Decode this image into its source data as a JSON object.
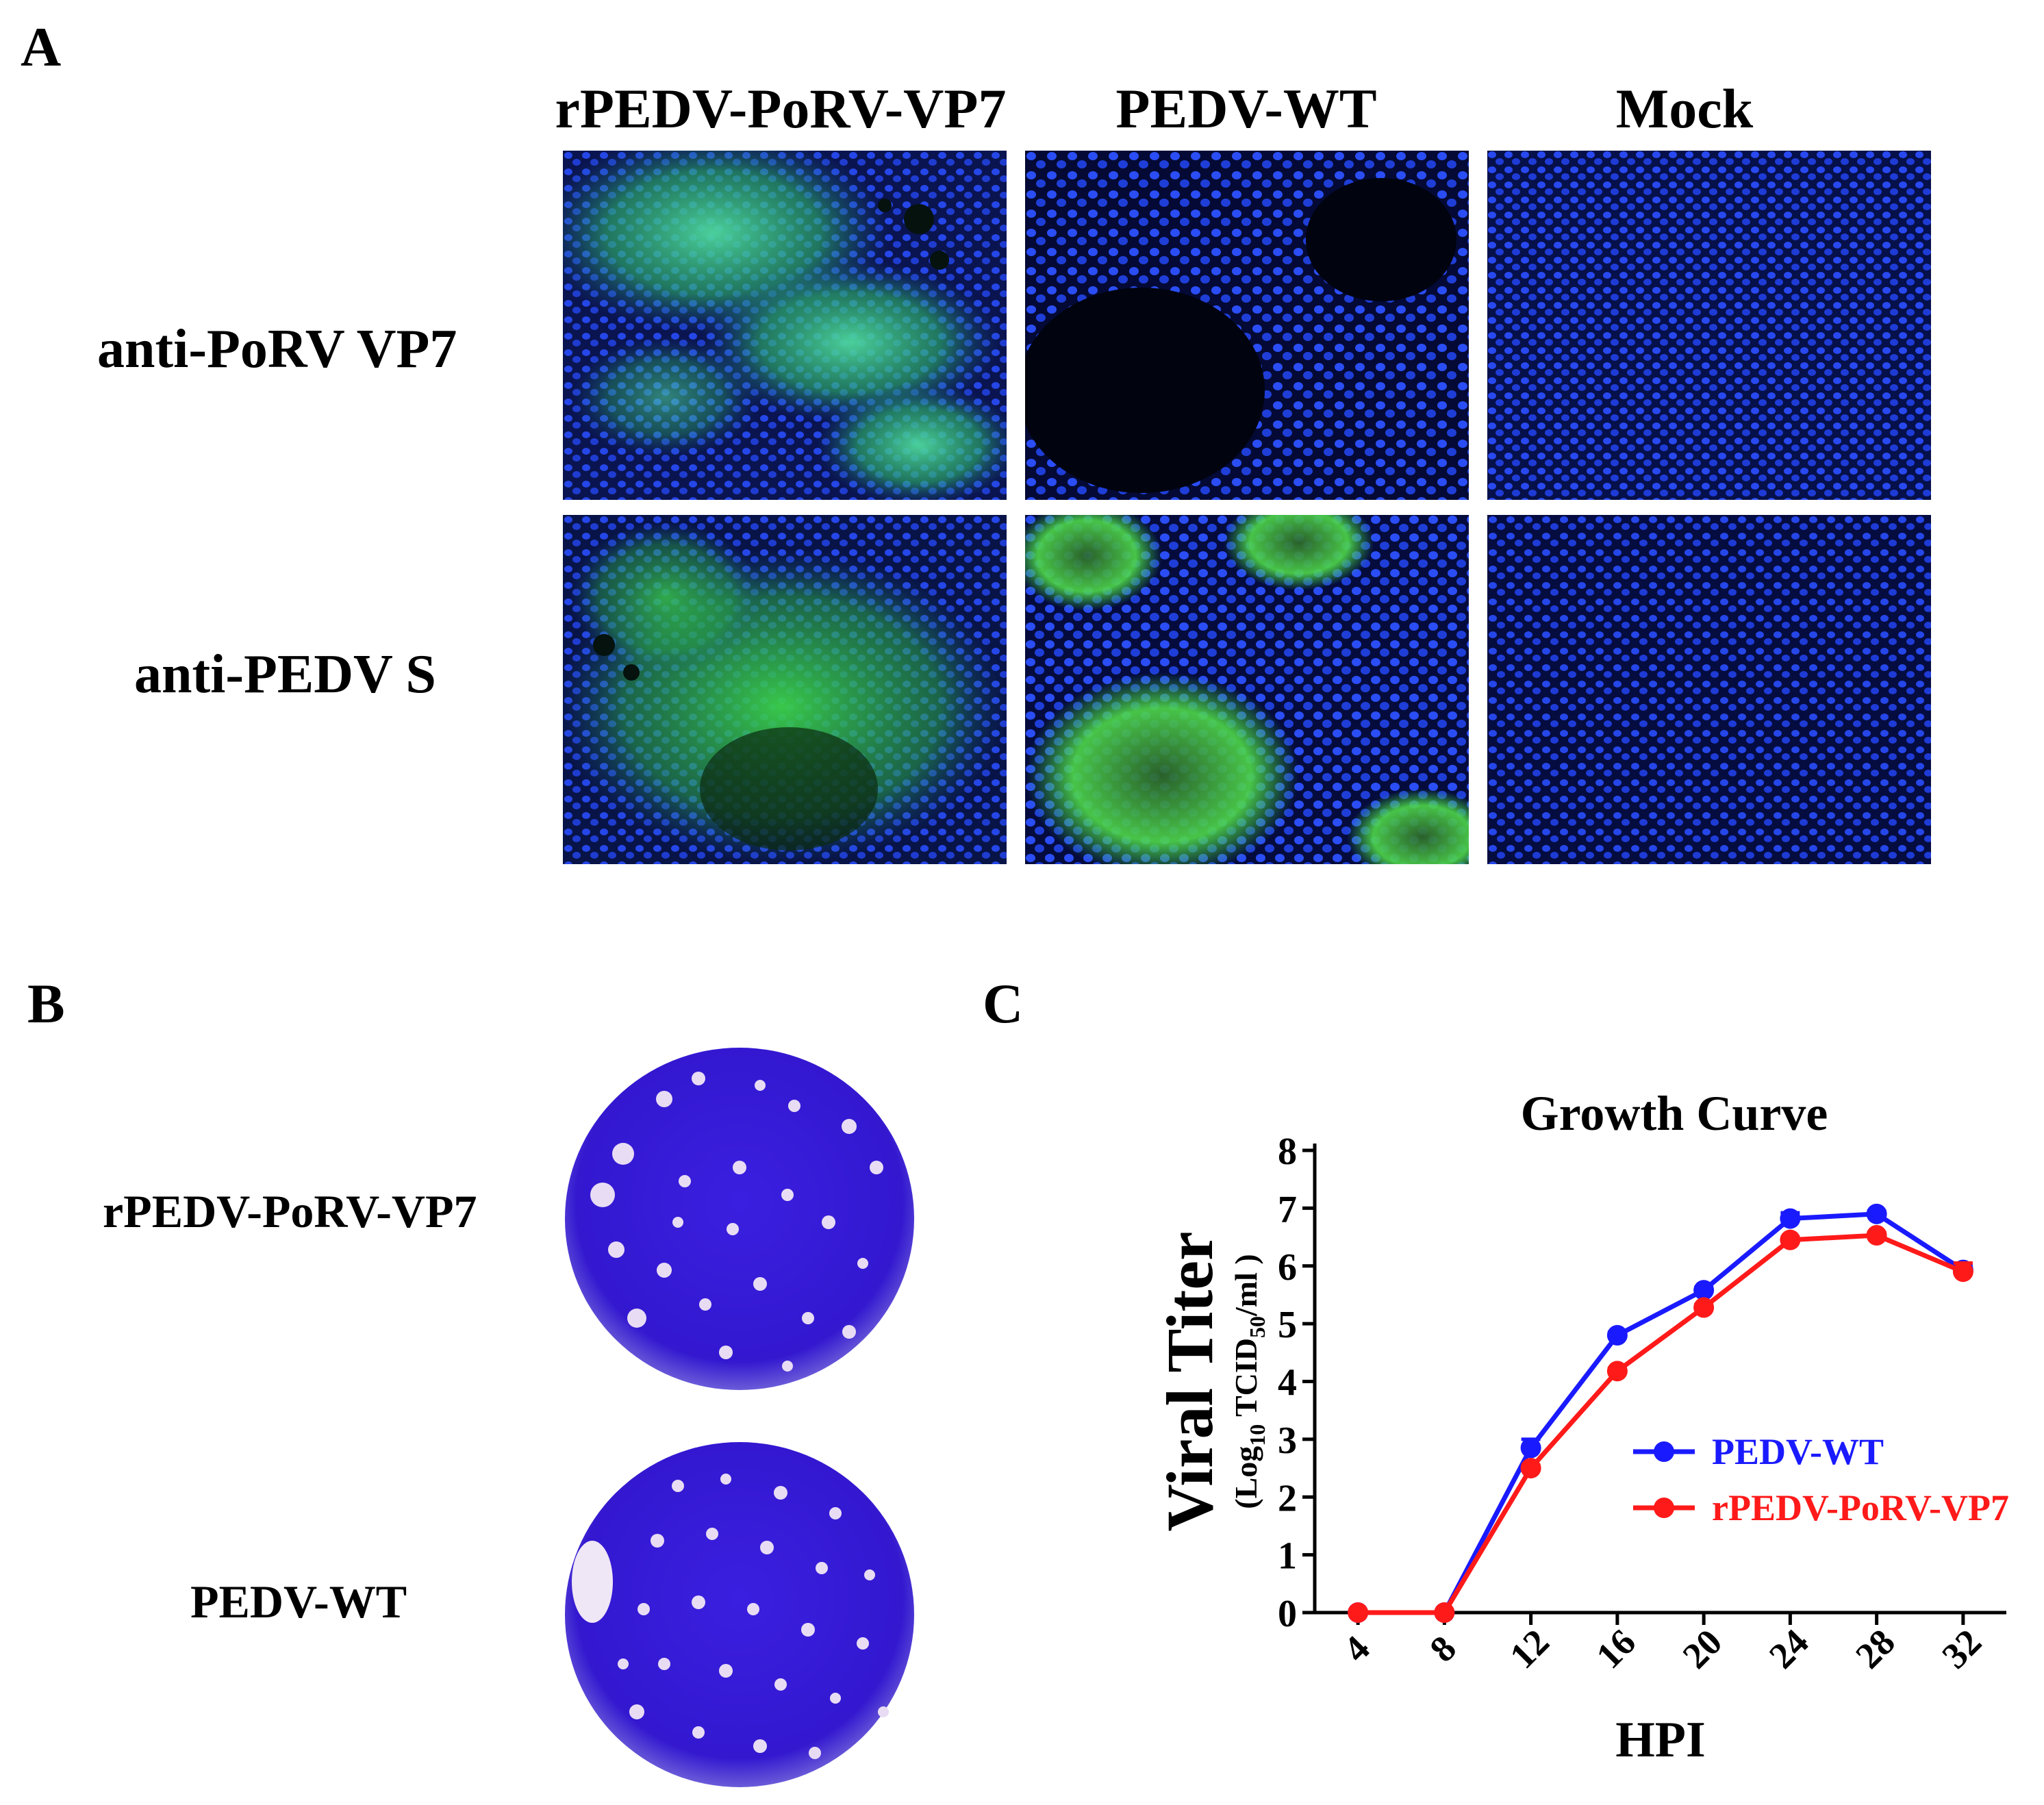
{
  "panel_a": {
    "letter": "A",
    "columns": [
      "rPEDV-PoRV-VP7",
      "PEDV-WT",
      "Mock"
    ],
    "rows": [
      "anti-PoRV VP7",
      "anti-PEDV S"
    ]
  },
  "panel_b": {
    "letter": "B",
    "plates": [
      "rPEDV-PoRV-VP7",
      "PEDV-WT"
    ]
  },
  "panel_c": {
    "letter": "C"
  },
  "colors": {
    "pedv_wt": "#1a1aff",
    "rpedv": "#ff1a1a",
    "nucleus_blue": "#1f3cff",
    "green_stain": "#38c23a",
    "plate_blue": "#3a1fe0"
  },
  "chart_data": {
    "type": "line",
    "title": "Growth Curve",
    "xlabel": "HPI",
    "ylabel": "Viral Titer",
    "ylabel_sub": {
      "pre": "(Log",
      "sub1": "10",
      "mid": " TCID",
      "sub2": "50",
      "post": "/ml )"
    },
    "x": [
      4,
      8,
      12,
      16,
      20,
      24,
      28,
      32
    ],
    "ylim": [
      0,
      8
    ],
    "yticks": [
      0,
      1,
      2,
      3,
      4,
      5,
      6,
      7,
      8
    ],
    "legend_position": "center-right",
    "series": [
      {
        "name": "PEDV-WT",
        "color": "#1a1aff",
        "values": [
          0,
          0,
          2.85,
          4.8,
          5.58,
          6.82,
          6.9,
          5.93
        ],
        "errors": [
          0,
          0,
          0.15,
          0.05,
          0.05,
          0.1,
          0.05,
          0.1
        ]
      },
      {
        "name": "rPEDV-PoRV-VP7",
        "color": "#ff1a1a",
        "values": [
          0,
          0,
          2.5,
          4.18,
          5.28,
          6.45,
          6.53,
          5.9
        ],
        "errors": [
          0,
          0,
          0.05,
          0.05,
          0.05,
          0.05,
          0.05,
          0.15
        ]
      }
    ]
  }
}
